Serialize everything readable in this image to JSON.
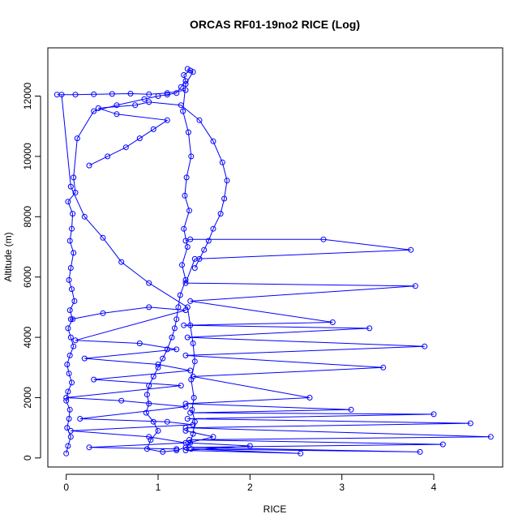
{
  "chart_data": {
    "type": "line",
    "title": "ORCAS RF01-19no2 RICE (Log)",
    "xlabel": "RICE",
    "ylabel": "Altitude (m)",
    "xlim": [
      -0.2,
      4.75
    ],
    "ylim": [
      -300,
      13600
    ],
    "xticks": [
      0,
      1,
      2,
      3,
      4
    ],
    "xtick_labels": [
      "0",
      "1",
      "2",
      "3",
      "4"
    ],
    "yticks": [
      0,
      2000,
      4000,
      6000,
      8000,
      10000,
      12000
    ],
    "ytick_labels": [
      "0",
      "2000",
      "4000",
      "6000",
      "8000",
      "10000",
      "12000"
    ],
    "grid": false,
    "legend": "none",
    "colors": {
      "series": "#0000ff",
      "axes": "#000000"
    },
    "marker": "open-circle",
    "series": [
      {
        "x": [
          0.0,
          0.02,
          0.05,
          0.01,
          0.03,
          0.04,
          0.0,
          0.02,
          0.06,
          0.03,
          0.01,
          0.04,
          0.08,
          0.05,
          0.02,
          0.07,
          0.04,
          0.09,
          0.06,
          0.03,
          0.05,
          0.08,
          0.04,
          0.06,
          0.07,
          0.02,
          0.1,
          0.08,
          0.12,
          0.3,
          0.55,
          0.85,
          1.0,
          1.1,
          1.2,
          1.25,
          1.3,
          1.28,
          1.35,
          1.32,
          1.38,
          1.3,
          1.27,
          1.33,
          1.36,
          1.31,
          1.29,
          1.34,
          1.28,
          1.32,
          1.26,
          1.3,
          1.24,
          1.22,
          1.2,
          1.18,
          1.15,
          1.1,
          1.05,
          1.0,
          0.95,
          0.9,
          0.88,
          0.9,
          0.87,
          0.95,
          1.0,
          0.92,
          0.88,
          1.05,
          1.2,
          1.3,
          1.35,
          1.38,
          1.4,
          1.37,
          1.39,
          1.36,
          1.4,
          1.38,
          1.35,
          1.32,
          0.9,
          0.6,
          0.4,
          0.2,
          0.05,
          -0.05,
          -0.1,
          0.1,
          0.3,
          0.5,
          0.7,
          0.9,
          1.1,
          1.3
        ],
        "y": [
          150,
          400,
          700,
          1000,
          1300,
          1600,
          1900,
          2200,
          2500,
          2800,
          3100,
          3400,
          3700,
          4000,
          4300,
          4600,
          4900,
          5200,
          5600,
          5900,
          6300,
          6800,
          7200,
          7600,
          8100,
          8500,
          8800,
          9300,
          10600,
          11500,
          11700,
          11900,
          12000,
          12050,
          12100,
          12300,
          12500,
          12700,
          12850,
          12900,
          12800,
          12400,
          11500,
          10800,
          10000,
          9300,
          8700,
          8200,
          7600,
          7000,
          6400,
          5900,
          5400,
          5000,
          4600,
          4300,
          4000,
          3600,
          3300,
          3000,
          2700,
          2400,
          2100,
          1800,
          1500,
          1200,
          900,
          600,
          300,
          200,
          250,
          350,
          500,
          800,
          1200,
          1600,
          2000,
          2600,
          3200,
          3800,
          4400,
          5000,
          5800,
          6500,
          7300,
          8000,
          9000,
          12050,
          12050,
          12050,
          12060,
          12070,
          12080,
          12060,
          12100,
          12200
        ]
      },
      {
        "x": [
          1.3,
          1.35,
          2.8,
          3.75,
          1.4,
          1.3,
          3.8,
          1.35,
          2.9,
          1.28,
          3.3,
          1.32,
          3.9,
          1.3,
          3.45,
          1.38,
          2.65,
          1.3,
          3.1,
          1.35,
          4.0,
          1.32,
          4.4,
          1.3,
          4.62,
          1.34,
          4.1,
          1.3,
          3.85,
          1.36,
          2.55,
          1.3,
          2.0,
          1.33,
          1.6,
          1.3
        ],
        "y": [
          7200,
          7250,
          7250,
          6900,
          6600,
          5800,
          5700,
          5200,
          4500,
          4400,
          4300,
          4000,
          3700,
          3400,
          3000,
          2700,
          2000,
          1800,
          1600,
          1500,
          1450,
          1300,
          1150,
          1000,
          700,
          600,
          450,
          350,
          200,
          300,
          150,
          250,
          400,
          500,
          700,
          900
        ]
      },
      {
        "x": [
          0.05,
          0.4,
          0.9,
          1.3,
          0.1,
          0.8,
          1.2,
          0.2,
          1.0,
          1.35,
          0.3,
          1.25,
          0.0,
          0.6,
          1.3,
          0.15,
          1.1,
          1.38,
          0.05,
          0.9,
          1.3,
          0.25,
          1.2
        ],
        "y": [
          4600,
          4800,
          5000,
          4900,
          3900,
          3800,
          3600,
          3300,
          3100,
          2900,
          2600,
          2400,
          2000,
          1900,
          1700,
          1300,
          1200,
          1100,
          900,
          700,
          500,
          350,
          300
        ]
      },
      {
        "x": [
          0.25,
          0.45,
          0.65,
          0.8,
          0.95,
          1.1,
          0.55,
          0.35,
          0.75,
          0.9,
          1.25,
          1.45,
          1.6,
          1.7,
          1.75,
          1.72,
          1.68,
          1.6,
          1.55,
          1.5,
          1.45,
          1.4
        ],
        "y": [
          9700,
          10000,
          10300,
          10600,
          10900,
          11200,
          11400,
          11600,
          11700,
          11800,
          11700,
          11200,
          10500,
          9800,
          9200,
          8600,
          8100,
          7600,
          7200,
          6900,
          6600,
          6300
        ]
      }
    ]
  }
}
